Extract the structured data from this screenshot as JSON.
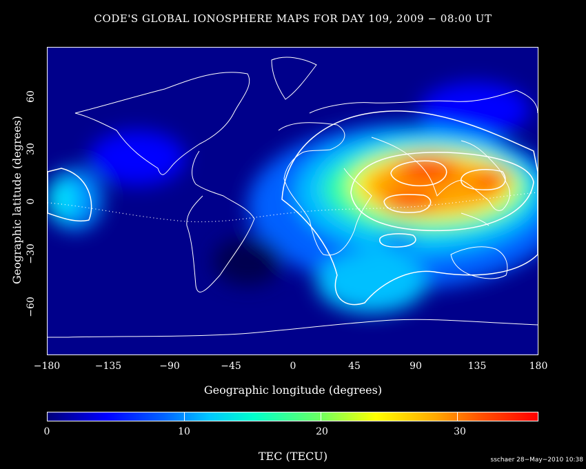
{
  "title": "CODE'S GLOBAL IONOSPHERE MAPS FOR DAY 109, 2009 − 08:00 UT",
  "map": {
    "x_axis": {
      "label": "Geographic longitude (degrees)",
      "ticks": [
        "−180",
        "−135",
        "−90",
        "−45",
        "0",
        "45",
        "90",
        "135",
        "180"
      ],
      "range": [
        -180,
        180
      ]
    },
    "y_axis": {
      "label": "Geographic latitude (degrees)",
      "ticks": [
        "−60",
        "−30",
        "0",
        "30",
        "60"
      ],
      "range": [
        -87.5,
        87.5
      ]
    },
    "contour_levels_tecu": [
      10,
      20,
      30
    ],
    "colors": {
      "background": "#00008b",
      "coast": "#ffffff"
    }
  },
  "colorbar": {
    "label": "TEC (TECU)",
    "ticks": [
      "0",
      "10",
      "20",
      "30"
    ],
    "range": [
      0,
      36
    ]
  },
  "credit": "sschaer 28−May−2010 10:38"
}
